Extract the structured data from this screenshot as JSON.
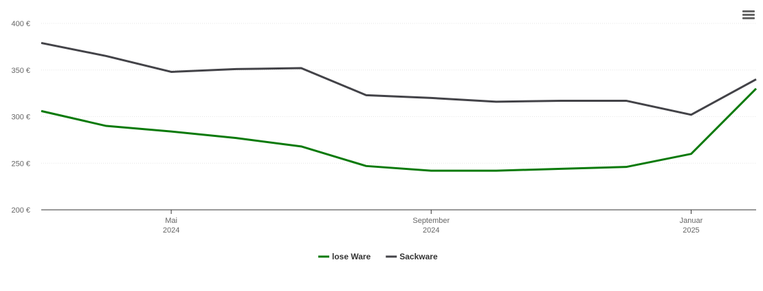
{
  "chart_data": {
    "type": "line",
    "x": [
      "2024-03",
      "2024-04",
      "2024-05",
      "2024-06",
      "2024-07",
      "2024-08",
      "2024-09",
      "2024-10",
      "2024-11",
      "2024-12",
      "2025-01",
      "2025-02"
    ],
    "series": [
      {
        "name": "lose Ware",
        "color": "#0a7a0a",
        "values": [
          306,
          290,
          284,
          277,
          268,
          247,
          242,
          242,
          244,
          246,
          260,
          330
        ]
      },
      {
        "name": "Sackware",
        "color": "#434348",
        "values": [
          379,
          365,
          348,
          351,
          352,
          323,
          320,
          316,
          317,
          317,
          302,
          340
        ]
      }
    ],
    "ylim": [
      200,
      400
    ],
    "yticks": [
      {
        "value": 200,
        "label": "200 €"
      },
      {
        "value": 250,
        "label": "250 €"
      },
      {
        "value": 300,
        "label": "300 €"
      },
      {
        "value": 350,
        "label": "350 €"
      },
      {
        "value": 400,
        "label": "400 €"
      }
    ],
    "xticks": [
      {
        "value": "2024-05",
        "label": [
          "Mai",
          "2024"
        ]
      },
      {
        "value": "2024-09",
        "label": [
          "September",
          "2024"
        ]
      },
      {
        "value": "2025-01",
        "label": [
          "Januar",
          "2025"
        ]
      }
    ],
    "grid": true,
    "legend": "bottom"
  }
}
